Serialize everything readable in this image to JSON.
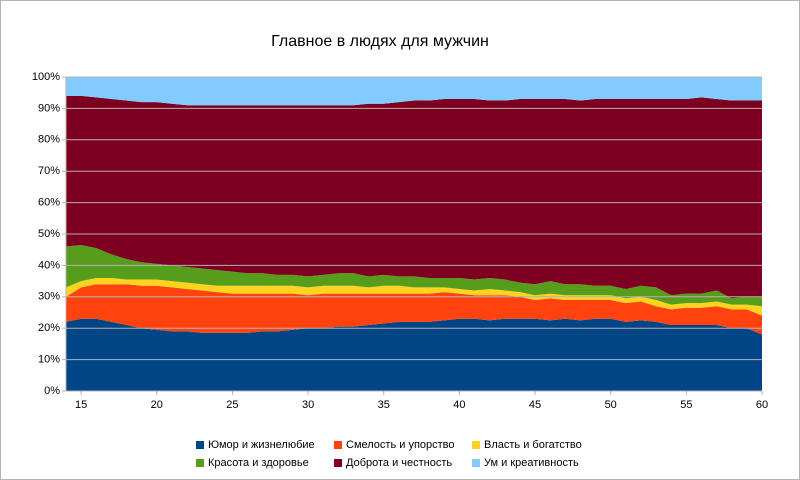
{
  "chart_data": {
    "type": "stacked_area_100",
    "title": "Главное в людях для мужчин",
    "x": [
      14,
      15,
      16,
      17,
      18,
      19,
      20,
      21,
      22,
      23,
      24,
      25,
      26,
      27,
      28,
      29,
      30,
      31,
      32,
      33,
      34,
      35,
      36,
      37,
      38,
      39,
      40,
      41,
      42,
      43,
      44,
      45,
      46,
      47,
      48,
      49,
      50,
      51,
      52,
      53,
      54,
      55,
      56,
      57,
      58,
      59,
      60
    ],
    "xlim": [
      14,
      60
    ],
    "xticks": [
      15,
      20,
      25,
      30,
      35,
      40,
      45,
      50,
      55,
      60
    ],
    "ylim": [
      0,
      100
    ],
    "yticks": [
      {
        "value": 0,
        "label": "0%"
      },
      {
        "value": 10,
        "label": "10%"
      },
      {
        "value": 20,
        "label": "20%"
      },
      {
        "value": 30,
        "label": "30%"
      },
      {
        "value": 40,
        "label": "40%"
      },
      {
        "value": 50,
        "label": "50%"
      },
      {
        "value": 60,
        "label": "60%"
      },
      {
        "value": 70,
        "label": "70%"
      },
      {
        "value": 80,
        "label": "80%"
      },
      {
        "value": 90,
        "label": "90%"
      },
      {
        "value": 100,
        "label": "100%"
      }
    ],
    "grid": true,
    "legend": "bottom",
    "series": [
      {
        "name": "Юмор и жизнелюбие",
        "color": "#004586",
        "values": [
          22,
          23,
          23,
          22,
          21,
          20,
          19.5,
          19,
          19,
          18.5,
          18.5,
          18.5,
          18.5,
          19,
          19,
          19.5,
          20,
          20,
          20.5,
          20.5,
          21,
          21.5,
          22,
          22,
          22,
          22.5,
          23,
          23,
          22.5,
          23,
          23,
          23,
          22.5,
          23,
          22.5,
          23,
          23,
          22,
          22.5,
          22,
          21,
          21,
          21,
          21,
          20,
          20,
          18
        ]
      },
      {
        "name": "Смелость и упорство",
        "color": "#ff420e",
        "values": [
          8,
          10,
          11,
          12,
          13,
          13.5,
          14,
          14,
          13.5,
          13.5,
          13,
          12.5,
          12.5,
          12,
          12,
          11.5,
          10.5,
          11,
          10.5,
          10.5,
          10,
          9.5,
          9,
          9,
          9,
          9,
          8,
          7.5,
          8,
          7.5,
          7,
          6,
          7,
          6,
          6.5,
          6,
          6,
          6,
          6,
          5,
          5,
          5.5,
          5.5,
          6,
          6,
          6,
          6
        ]
      },
      {
        "name": "Власть и богатство",
        "color": "#ffd320",
        "values": [
          3,
          2,
          2,
          2,
          1.5,
          2,
          2,
          2,
          2,
          2,
          2,
          2.5,
          2.5,
          2.5,
          2.5,
          2.5,
          2.5,
          2.5,
          2.5,
          2.5,
          2,
          2.5,
          2.5,
          2,
          2,
          1.5,
          1.5,
          1.5,
          2,
          1.5,
          1.5,
          1.5,
          1.5,
          1.5,
          1.5,
          1.5,
          1.5,
          1.5,
          1.5,
          2,
          1.5,
          1.5,
          1.5,
          1.5,
          1.5,
          1.5,
          3
        ]
      },
      {
        "name": "Красота и здоровье",
        "color": "#579d1c",
        "values": [
          13,
          11.5,
          9.5,
          7.5,
          6.5,
          5.5,
          5,
          5,
          5,
          5,
          5,
          4.5,
          4,
          4,
          3.5,
          3.5,
          3.5,
          3.5,
          4,
          4,
          3.5,
          3.5,
          3,
          3.5,
          3,
          3,
          3.5,
          3.5,
          3.5,
          3.5,
          3,
          3.5,
          4,
          3.5,
          3.5,
          3,
          3,
          3,
          3.5,
          4,
          3,
          3,
          3,
          3.5,
          2,
          2.5,
          3
        ]
      },
      {
        "name": "Доброта и честность",
        "color": "#7e0021",
        "values": [
          48,
          47.5,
          48,
          49.5,
          50.5,
          51,
          51.5,
          51.5,
          51.5,
          52,
          52.5,
          53,
          53.5,
          53.5,
          54,
          54,
          54.5,
          54,
          53.5,
          53.5,
          55,
          54.5,
          55.5,
          56,
          56.5,
          57,
          57,
          57.5,
          56.5,
          57,
          58.5,
          59,
          58,
          59,
          58.5,
          59.5,
          59.5,
          60.5,
          59.5,
          60,
          62.5,
          62,
          62.5,
          61,
          63,
          62.5,
          62.5
        ]
      },
      {
        "name": "Ум и креативность",
        "color": "#83caff",
        "values": [
          6,
          6,
          6.5,
          7,
          7.5,
          8,
          8,
          8.5,
          9,
          9,
          9,
          9,
          9,
          9,
          9,
          9,
          9,
          9,
          9,
          9,
          8.5,
          8.5,
          8,
          7.5,
          7.5,
          7,
          7,
          7,
          7.5,
          7.5,
          7,
          7,
          7,
          7,
          7.5,
          7,
          7,
          7,
          7,
          7,
          7,
          7,
          6.5,
          7,
          7.5,
          7.5,
          7.5
        ]
      }
    ]
  }
}
